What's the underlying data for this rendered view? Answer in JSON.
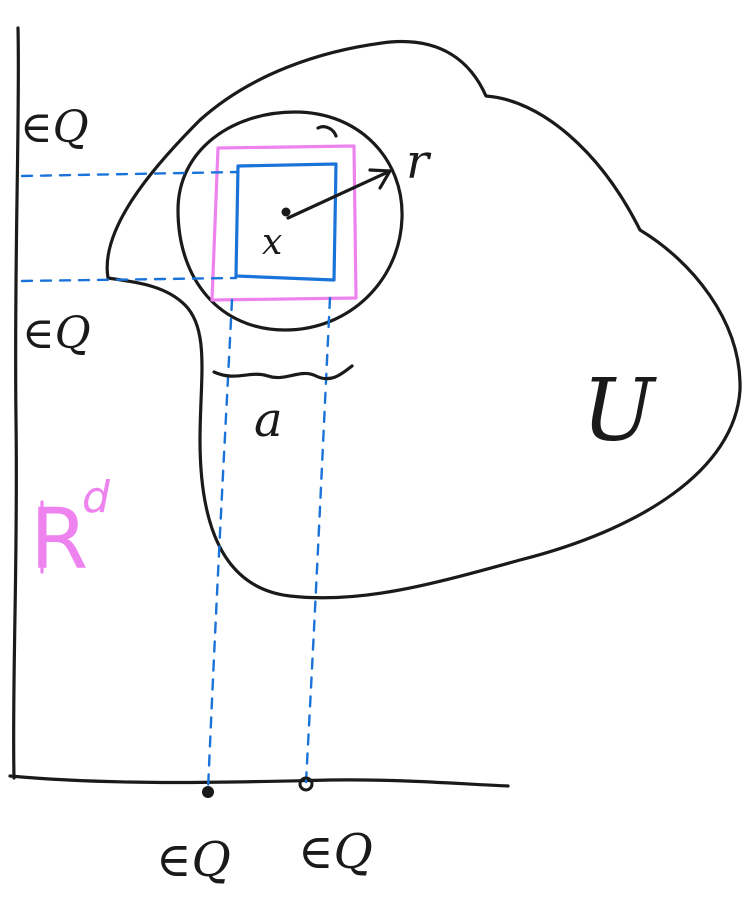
{
  "labels": {
    "y_rational_top": "∈Q",
    "y_rational_bottom": "∈Q",
    "x_rational_left": "∈Q",
    "x_rational_right": "∈Q",
    "space": "R",
    "space_exponent": "d",
    "set": "U",
    "radius": "r",
    "side": "a",
    "center": "x"
  },
  "colors": {
    "ink": "#1a1a1a",
    "cube_inner": "#1a73d9",
    "cube_outer": "#ee82ee",
    "space_label": "#ee82ee"
  }
}
